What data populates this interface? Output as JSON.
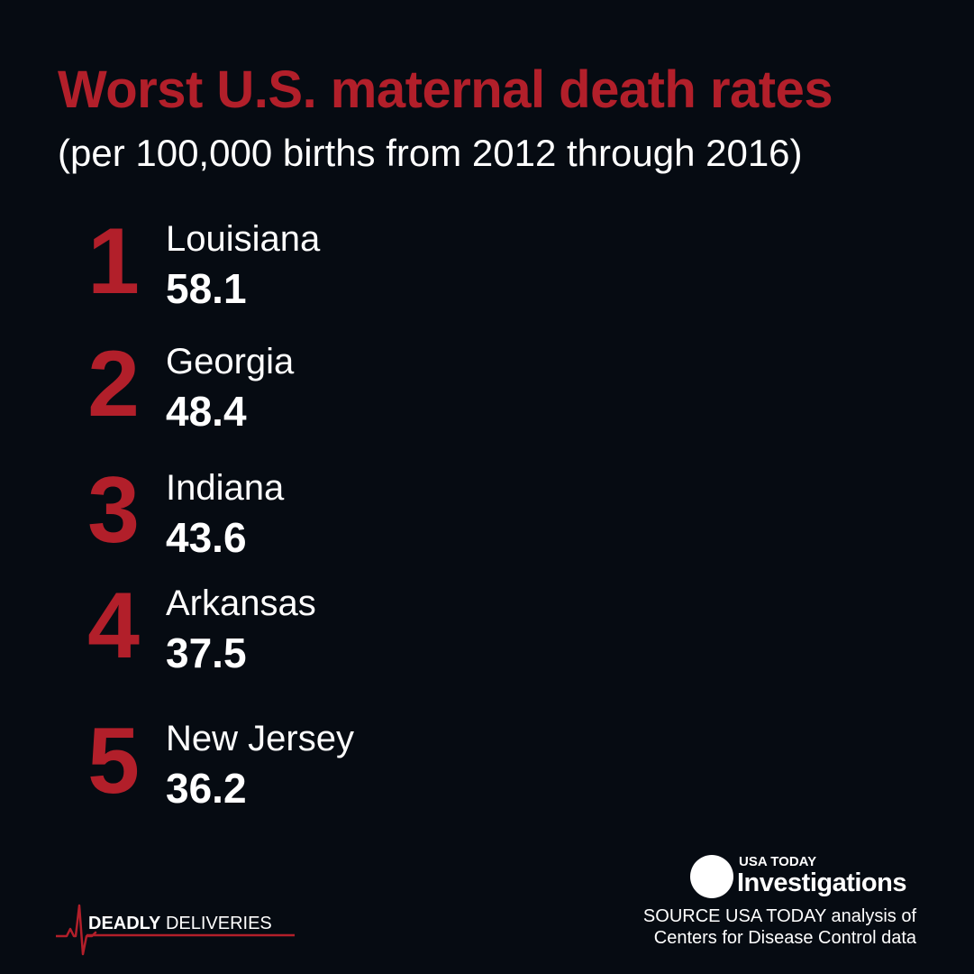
{
  "title": "Worst U.S. maternal death rates",
  "subtitle": "(per 100,000 births from 2012 through 2016)",
  "ranking": [
    {
      "rank": "1",
      "state": "Louisiana",
      "rate": "58.1"
    },
    {
      "rank": "2",
      "state": "Georgia",
      "rate": "48.4"
    },
    {
      "rank": "3",
      "state": "Indiana",
      "rate": "43.6"
    },
    {
      "rank": "4",
      "state": "Arkansas",
      "rate": "37.5"
    },
    {
      "rank": "5",
      "state": "New Jersey",
      "rate": "36.2"
    }
  ],
  "brand": {
    "top": "USA TODAY",
    "bottom": "Investigations"
  },
  "source": {
    "line1": "SOURCE USA TODAY analysis of",
    "line2": "Centers for Disease Control data"
  },
  "series": {
    "bold": "DEADLY",
    "rest": "DELIVERIES",
    "icon": "heartbeat-icon"
  },
  "colors": {
    "background": "#060b12",
    "accent": "#b21f2a",
    "text": "#ffffff"
  }
}
